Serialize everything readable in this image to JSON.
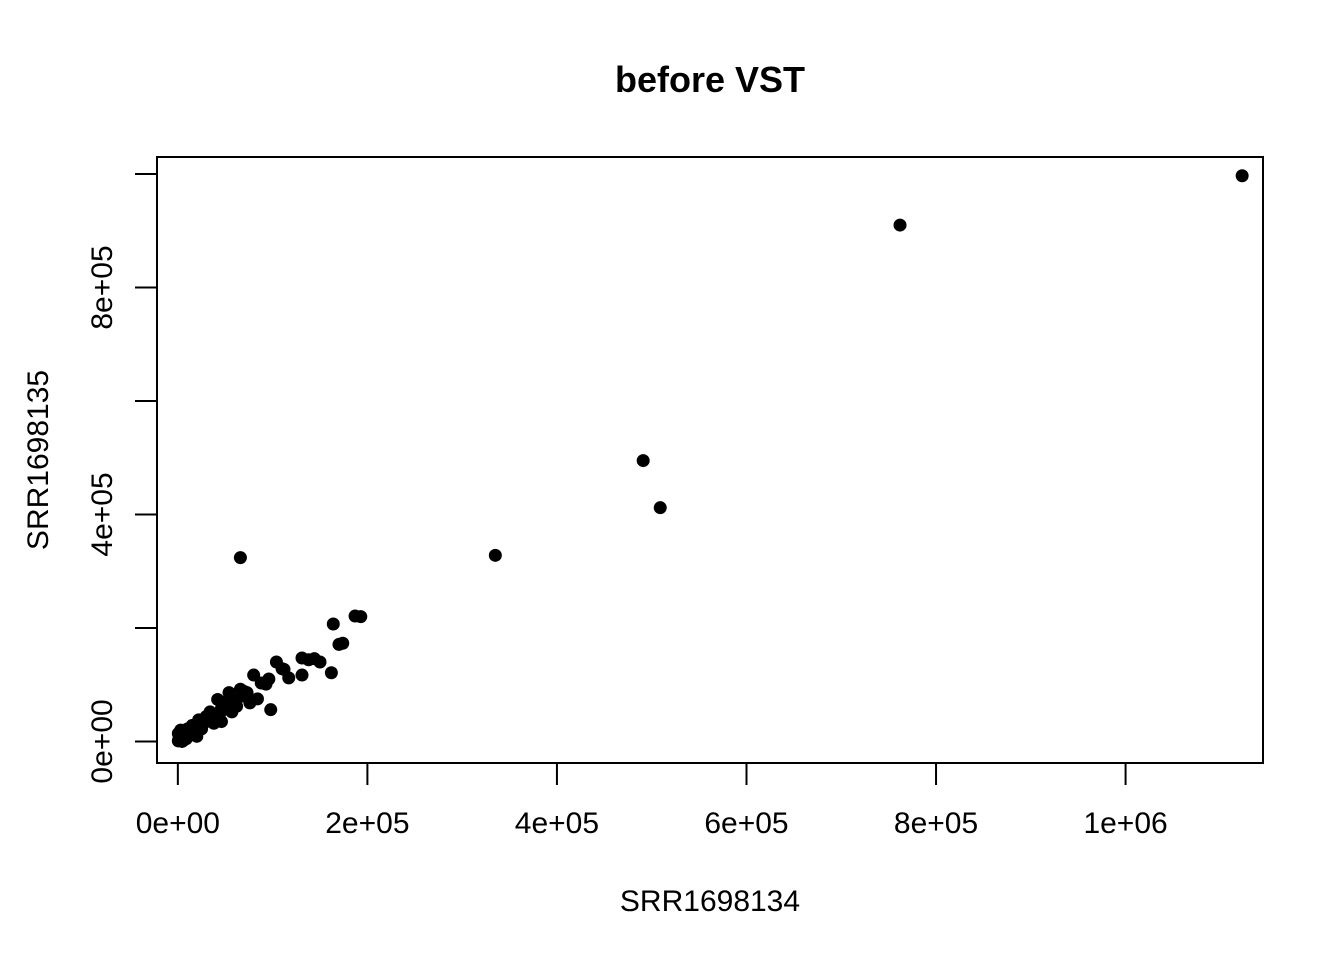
{
  "chart_data": {
    "type": "scatter",
    "title": "before VST",
    "xlabel": "SRR1698134",
    "ylabel": "SRR1698135",
    "xlim": [
      -22000,
      1145000
    ],
    "ylim": [
      -38000,
      1030000
    ],
    "x_ticks": [
      {
        "value": 0,
        "label": "0e+00"
      },
      {
        "value": 200000,
        "label": "2e+05"
      },
      {
        "value": 400000,
        "label": "4e+05"
      },
      {
        "value": 600000,
        "label": "6e+05"
      },
      {
        "value": 800000,
        "label": "8e+05"
      },
      {
        "value": 1000000,
        "label": "1e+06"
      }
    ],
    "y_ticks": [
      {
        "value": 0,
        "label": "0e+00"
      },
      {
        "value": 200000,
        "label": ""
      },
      {
        "value": 400000,
        "label": "4e+05"
      },
      {
        "value": 600000,
        "label": ""
      },
      {
        "value": 800000,
        "label": "8e+05"
      },
      {
        "value": 1000000,
        "label": ""
      }
    ],
    "grid": false,
    "point_color": "#000000",
    "series": [
      {
        "x": [
          1123000,
          762000,
          491000,
          509000,
          335000,
          66000,
          193000,
          187000,
          164000,
          174000,
          170000,
          162000,
          150000,
          138000,
          131000,
          144000,
          131000,
          112000,
          117000,
          104000,
          110000,
          96000,
          88000,
          93000,
          98000,
          80000,
          84000,
          73000,
          70000,
          62000,
          76000,
          66000,
          58000,
          54000,
          51000,
          46000,
          57000,
          42000,
          38000,
          46000,
          34000,
          30000,
          26000,
          38000,
          22000,
          18000,
          14000,
          10000,
          8000,
          6000,
          4000,
          2000,
          1000,
          500,
          3000,
          12000,
          20000,
          28000,
          36000,
          44000,
          52000,
          60000,
          68000,
          15000,
          25000,
          35000,
          6000,
          9000,
          2500,
          1500,
          500,
          4500,
          7000
        ],
        "y": [
          997000,
          910000,
          495000,
          412000,
          328000,
          324000,
          220000,
          221000,
          207000,
          173000,
          171000,
          121000,
          140000,
          144000,
          117000,
          146000,
          147000,
          127000,
          112000,
          140000,
          128000,
          110000,
          103000,
          101000,
          56000,
          117000,
          75000,
          86000,
          88000,
          62000,
          68000,
          92000,
          74000,
          86000,
          70000,
          58000,
          52000,
          74000,
          42000,
          35000,
          52000,
          44000,
          30000,
          32000,
          38000,
          26000,
          15000,
          22000,
          8000,
          18000,
          10000,
          6000,
          3000,
          14000,
          20000,
          12000,
          9000,
          33000,
          40000,
          48000,
          57000,
          64000,
          80000,
          28000,
          22000,
          38000,
          2000,
          5000,
          8000,
          4000,
          1000,
          0,
          12000
        ]
      }
    ]
  }
}
